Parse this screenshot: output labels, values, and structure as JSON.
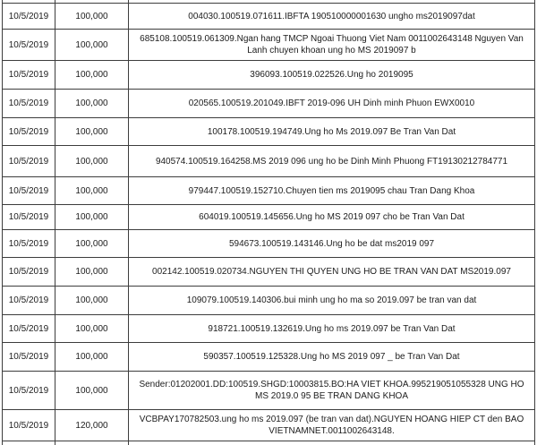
{
  "document": {
    "kind": "bank-transfer-table",
    "colors": {
      "border": "#3d3d3d",
      "text": "#1c1c1c",
      "background": "#ffffff"
    }
  },
  "table": {
    "columns": [
      "date",
      "amount",
      "description"
    ],
    "rows": [
      {
        "date": "10/5/2019",
        "amount": "100,000",
        "description": "004030.100519.071611.IBFTA 190510000001630 ungho ms2019097dat"
      },
      {
        "date": "10/5/2019",
        "amount": "100,000",
        "description": "685108.100519.061309.Ngan hang TMCP Ngoai Thuong Viet Nam 0011002643148 Nguyen Van Lanh chuyen khoan ung ho MS 2019097 b"
      },
      {
        "date": "10/5/2019",
        "amount": "100,000",
        "description": "396093.100519.022526.Ung ho 2019095"
      },
      {
        "date": "10/5/2019",
        "amount": "100,000",
        "description": "020565.100519.201049.IBFT 2019-096 UH Dinh minh Phuon EWX0010"
      },
      {
        "date": "10/5/2019",
        "amount": "100,000",
        "description": "100178.100519.194749.Ung ho Ms 2019.097 Be Tran Van Dat"
      },
      {
        "date": "10/5/2019",
        "amount": "100,000",
        "description": "940574.100519.164258.MS 2019 096 ung ho be Dinh Minh Phuong FT19130212784771"
      },
      {
        "date": "10/5/2019",
        "amount": "100,000",
        "description": "979447.100519.152710.Chuyen tien ms 2019095 chau Tran Dang Khoa"
      },
      {
        "date": "10/5/2019",
        "amount": "100,000",
        "description": "604019.100519.145656.Ung ho MS 2019 097 cho be Tran Van Dat"
      },
      {
        "date": "10/5/2019",
        "amount": "100,000",
        "description": "594673.100519.143146.Ung ho be dat ms2019 097"
      },
      {
        "date": "10/5/2019",
        "amount": "100,000",
        "description": "002142.100519.020734.NGUYEN THI QUYEN UNG HO BE TRAN VAN DAT MS2019.097"
      },
      {
        "date": "10/5/2019",
        "amount": "100,000",
        "description": "109079.100519.140306.bui minh ung ho ma so 2019.097 be tran van dat"
      },
      {
        "date": "10/5/2019",
        "amount": "100,000",
        "description": "918721.100519.132619.Ung ho ms 2019.097 be Tran Van Dat"
      },
      {
        "date": "10/5/2019",
        "amount": "100,000",
        "description": "590357.100519.125328.Ung ho MS 2019 097 _ be Tran Van Dat"
      },
      {
        "date": "10/5/2019",
        "amount": "100,000",
        "description": "Sender:01202001.DD:100519.SHGD:10003815.BO:HA VIET KHOA.995219051055328 UNG HO MS 2019.0 95 BE TRAN DANG KHOA"
      },
      {
        "date": "10/5/2019",
        "amount": "120,000",
        "description": "VCBPAY170782503.ung ho ms 2019.097 (be tran van dat).NGUYEN HOANG HIEP CT den BAO VIETNAMNET.0011002643148."
      }
    ]
  }
}
